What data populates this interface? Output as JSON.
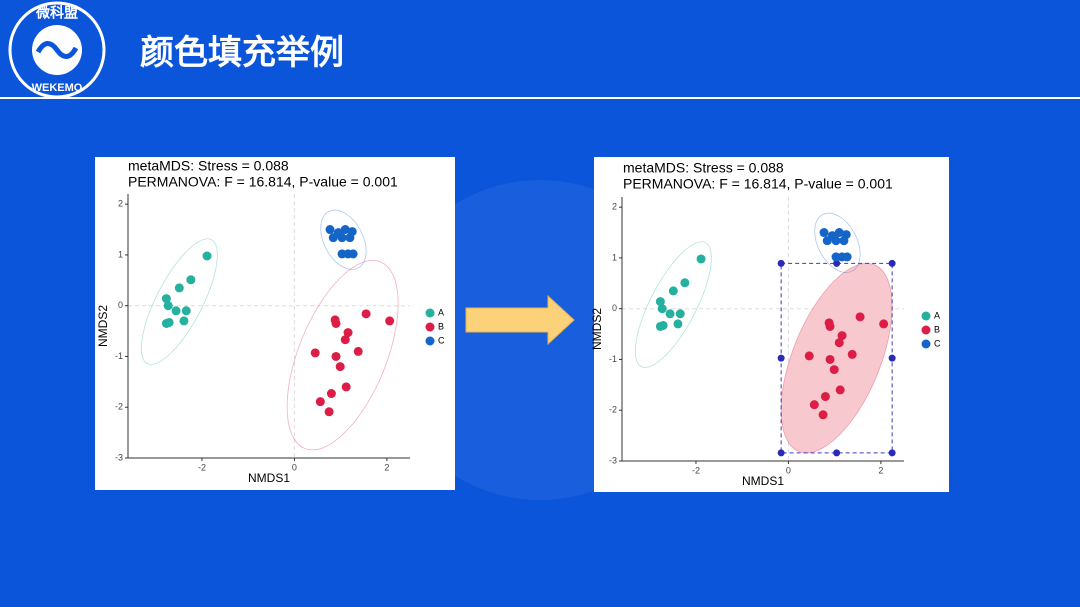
{
  "header": {
    "logo_text": "微科盟",
    "logo_subtext": "WEKEMO",
    "title": "颜色填充举例"
  },
  "chart_data": [
    {
      "type": "scatter",
      "title": "metaMDS: Stress = 0.088",
      "subtitle": "PERMANOVA: F = 16.814, P-value = 0.001",
      "x_label": "NMDS1",
      "y_label": "NMDS2",
      "xlim": [
        -3.6,
        2.5
      ],
      "ylim": [
        -3,
        2.2
      ],
      "xticks": [
        -2,
        0,
        2
      ],
      "yticks": [
        -3,
        -2,
        -1,
        0,
        1,
        2
      ],
      "series": [
        {
          "name": "A",
          "color": "#26b0a0",
          "x": [
            -1.89,
            -2.24,
            -2.49,
            -2.77,
            -2.73,
            -2.56,
            -2.34,
            -2.39,
            -2.71,
            -2.77
          ],
          "y": [
            0.98,
            0.51,
            0.35,
            0.14,
            0.0,
            -0.1,
            -0.1,
            -0.3,
            -0.33,
            -0.35
          ]
        },
        {
          "name": "B",
          "color": "#dc1e46",
          "x": [
            1.55,
            2.06,
            0.88,
            0.9,
            1.16,
            1.1,
            0.45,
            0.9,
            1.38,
            0.99,
            1.12,
            0.8,
            0.56,
            0.75
          ],
          "y": [
            -0.16,
            -0.3,
            -0.28,
            -0.35,
            -0.53,
            -0.67,
            -0.93,
            -1.0,
            -0.9,
            -1.2,
            -1.6,
            -1.73,
            -1.89,
            -2.09
          ]
        },
        {
          "name": "C",
          "color": "#1565c8",
          "x": [
            0.77,
            0.95,
            1.1,
            1.25,
            1.03,
            1.2,
            0.84,
            1.03,
            1.16,
            1.27
          ],
          "y": [
            1.5,
            1.44,
            1.5,
            1.46,
            1.34,
            1.34,
            1.34,
            1.02,
            1.02,
            1.02
          ]
        }
      ]
    },
    {
      "type": "scatter",
      "title": "metaMDS: Stress = 0.088",
      "subtitle": "PERMANOVA: F = 16.814, P-value = 0.001",
      "x_label": "NMDS1",
      "y_label": "NMDS2",
      "xlim": [
        -3.6,
        2.5
      ],
      "ylim": [
        -3,
        2.2
      ],
      "xticks": [
        -2,
        0,
        2
      ],
      "yticks": [
        -3,
        -2,
        -1,
        0,
        1,
        2
      ],
      "series": [
        {
          "name": "A",
          "color": "#26b0a0",
          "x": [
            -1.89,
            -2.24,
            -2.49,
            -2.77,
            -2.73,
            -2.56,
            -2.34,
            -2.39,
            -2.71,
            -2.77
          ],
          "y": [
            0.98,
            0.51,
            0.35,
            0.14,
            0.0,
            -0.1,
            -0.1,
            -0.3,
            -0.33,
            -0.35
          ]
        },
        {
          "name": "B",
          "color": "#dc1e46",
          "ellipse_fill": "#f7c9cf",
          "x": [
            1.55,
            2.06,
            0.88,
            0.9,
            1.16,
            1.1,
            0.45,
            0.9,
            1.38,
            0.99,
            1.12,
            0.8,
            0.56,
            0.75
          ],
          "y": [
            -0.16,
            -0.3,
            -0.28,
            -0.35,
            -0.53,
            -0.67,
            -0.93,
            -1.0,
            -0.9,
            -1.2,
            -1.6,
            -1.73,
            -1.89,
            -2.09
          ]
        },
        {
          "name": "C",
          "color": "#1565c8",
          "x": [
            0.77,
            0.95,
            1.1,
            1.25,
            1.03,
            1.2,
            0.84,
            1.03,
            1.16,
            1.27
          ],
          "y": [
            1.5,
            1.44,
            1.5,
            1.46,
            1.34,
            1.34,
            1.34,
            1.02,
            1.02,
            1.02
          ]
        }
      ]
    }
  ]
}
